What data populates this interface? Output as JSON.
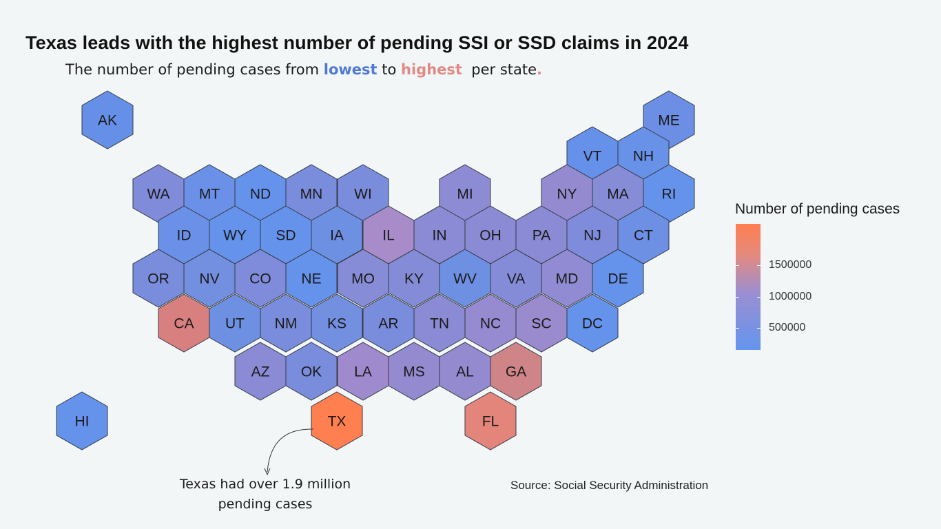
{
  "title": "Texas leads with the highest number of pending SSI or SSD claims in 2024",
  "subtitle": {
    "prefix": "The number of pending cases from ",
    "low_word": "lowest",
    "middle": " to ",
    "high_word": "highest",
    "suffix": "  per state",
    "end_mark": "."
  },
  "legend": {
    "title": "Number of pending cases",
    "ticks": [
      {
        "value": 1500000,
        "label": "1500000"
      },
      {
        "value": 1000000,
        "label": "1000000"
      },
      {
        "value": 500000,
        "label": "500000"
      }
    ],
    "min": 0,
    "max": 2000000,
    "color_low": "#6495ed",
    "color_mid": "#9a8ed2",
    "color_high": "#ff7f50"
  },
  "states": [
    {
      "abbr": "AK",
      "fill": "#6690e8"
    },
    {
      "abbr": "ME",
      "fill": "#6c8ee4"
    },
    {
      "abbr": "VT",
      "fill": "#6691ea"
    },
    {
      "abbr": "NH",
      "fill": "#6891e8"
    },
    {
      "abbr": "WA",
      "fill": "#808cd9"
    },
    {
      "abbr": "MT",
      "fill": "#6a91e7"
    },
    {
      "abbr": "ND",
      "fill": "#6592ea"
    },
    {
      "abbr": "MN",
      "fill": "#7a8ddc"
    },
    {
      "abbr": "WI",
      "fill": "#7a8ddc"
    },
    {
      "abbr": "MI",
      "fill": "#8d8bd4"
    },
    {
      "abbr": "NY",
      "fill": "#948ad0"
    },
    {
      "abbr": "MA",
      "fill": "#878cd6"
    },
    {
      "abbr": "RI",
      "fill": "#6592ea"
    },
    {
      "abbr": "ID",
      "fill": "#6a91e7"
    },
    {
      "abbr": "WY",
      "fill": "#6592ea"
    },
    {
      "abbr": "SD",
      "fill": "#6592ea"
    },
    {
      "abbr": "IA",
      "fill": "#6e90e3"
    },
    {
      "abbr": "IL",
      "fill": "#a78cc9"
    },
    {
      "abbr": "IN",
      "fill": "#8a8bd4"
    },
    {
      "abbr": "OH",
      "fill": "#8a8bd4"
    },
    {
      "abbr": "PA",
      "fill": "#8a8bd4"
    },
    {
      "abbr": "NJ",
      "fill": "#7e8cdb"
    },
    {
      "abbr": "CT",
      "fill": "#6d8fe4"
    },
    {
      "abbr": "OR",
      "fill": "#7a8ddc"
    },
    {
      "abbr": "NV",
      "fill": "#738fe0"
    },
    {
      "abbr": "CO",
      "fill": "#7e8cdb"
    },
    {
      "abbr": "NE",
      "fill": "#6592ea"
    },
    {
      "abbr": "MO",
      "fill": "#878cd6"
    },
    {
      "abbr": "KY",
      "fill": "#848cd8"
    },
    {
      "abbr": "WV",
      "fill": "#6e90e3"
    },
    {
      "abbr": "VA",
      "fill": "#848cd8"
    },
    {
      "abbr": "MD",
      "fill": "#908bd2"
    },
    {
      "abbr": "DE",
      "fill": "#6592ea"
    },
    {
      "abbr": "CA",
      "fill": "#d8807f"
    },
    {
      "abbr": "UT",
      "fill": "#6e90e3"
    },
    {
      "abbr": "NM",
      "fill": "#7a8ddc"
    },
    {
      "abbr": "KS",
      "fill": "#738fe0"
    },
    {
      "abbr": "AR",
      "fill": "#7a8ddc"
    },
    {
      "abbr": "TN",
      "fill": "#8a8bd4"
    },
    {
      "abbr": "NC",
      "fill": "#968ad0"
    },
    {
      "abbr": "SC",
      "fill": "#9a8ace"
    },
    {
      "abbr": "DC",
      "fill": "#6592ea"
    },
    {
      "abbr": "AZ",
      "fill": "#8a8bd4"
    },
    {
      "abbr": "OK",
      "fill": "#7a8ddc"
    },
    {
      "abbr": "LA",
      "fill": "#a08ace"
    },
    {
      "abbr": "MS",
      "fill": "#948ad0"
    },
    {
      "abbr": "AL",
      "fill": "#948ad0"
    },
    {
      "abbr": "GA",
      "fill": "#cf8588"
    },
    {
      "abbr": "HI",
      "fill": "#6592ea"
    },
    {
      "abbr": "TX",
      "fill": "#ff7f50"
    },
    {
      "abbr": "FL",
      "fill": "#e4857c"
    }
  ],
  "annotation": {
    "line1": "Texas had over 1.9 million",
    "line2": "pending cases"
  },
  "source": "Source: Social Security Administration"
}
